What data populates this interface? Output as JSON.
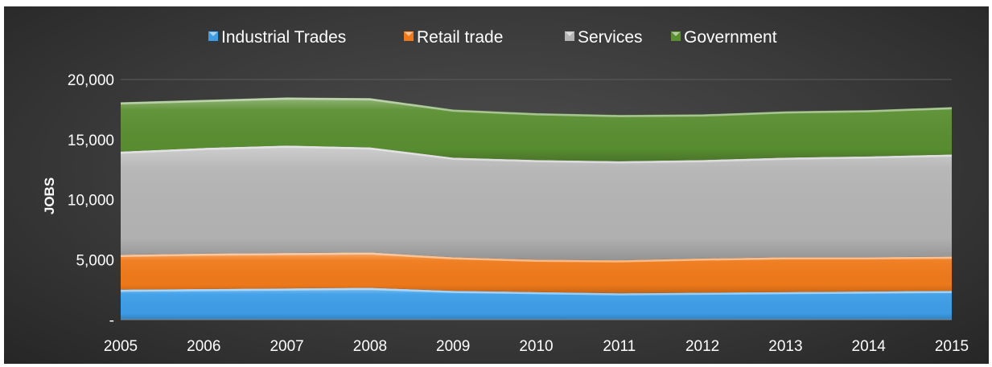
{
  "chart_data": {
    "type": "area",
    "stacked": true,
    "title": "",
    "xlabel": "",
    "ylabel": "JOBS",
    "categories": [
      "2005",
      "2006",
      "2007",
      "2008",
      "2009",
      "2010",
      "2011",
      "2012",
      "2013",
      "2014",
      "2015"
    ],
    "ylim": [
      0,
      20000
    ],
    "yticks": [
      0,
      5000,
      10000,
      15000,
      20000
    ],
    "ytick_labels": [
      "-",
      "5,000",
      "10,000",
      "15,000",
      "20,000"
    ],
    "grid": true,
    "legend_position": "top",
    "series": [
      {
        "name": "Industrial Trades",
        "color": "#3d9ee8",
        "values": [
          2500,
          2550,
          2600,
          2650,
          2400,
          2300,
          2200,
          2250,
          2300,
          2350,
          2400
        ]
      },
      {
        "name": "Retail trade",
        "color": "#f07a1a",
        "values": [
          2900,
          2950,
          2950,
          2950,
          2800,
          2700,
          2750,
          2850,
          2900,
          2850,
          2850
        ]
      },
      {
        "name": "Services",
        "color": "#b4b4b4",
        "values": [
          8600,
          8800,
          8950,
          8750,
          8300,
          8300,
          8250,
          8200,
          8300,
          8400,
          8500
        ]
      },
      {
        "name": "Government",
        "color": "#5a8f32",
        "values": [
          4100,
          4000,
          4000,
          4100,
          4000,
          3900,
          3850,
          3800,
          3850,
          3850,
          3950
        ]
      }
    ]
  }
}
